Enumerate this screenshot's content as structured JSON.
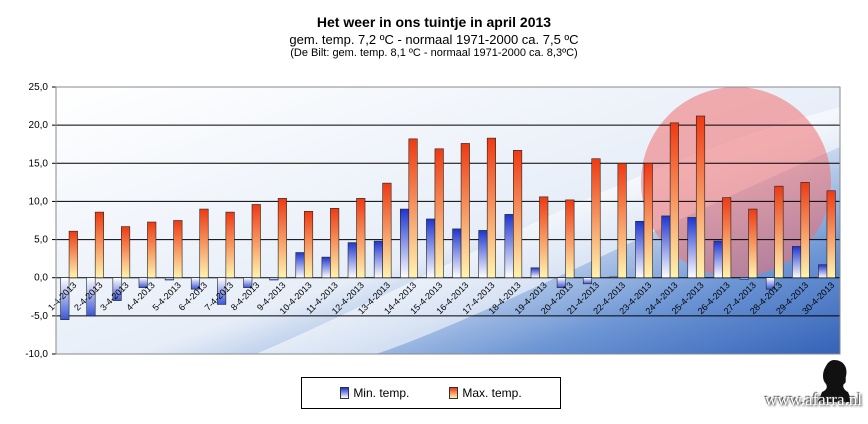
{
  "chart_data": {
    "type": "bar",
    "title": "Het weer in ons tuintje in april 2013",
    "subtitle": "gem. temp. 7,2 ºC - normaal 1971-2000 ca. 7,5 ºC",
    "subtitle2": "(De Bilt: gem. temp. 8,1 ºC - normaal 1971-2000 ca. 8,3ºC)",
    "xlabel": "",
    "ylabel": "",
    "ylim": [
      -10,
      25
    ],
    "yticks": [
      "-10,0",
      "-5,0",
      "0,0",
      "5,0",
      "10,0",
      "15,0",
      "20,0",
      "25,0"
    ],
    "grid": true,
    "legend_position": "bottom",
    "categories": [
      "1-4-2013",
      "2-4-2013",
      "3-4-2013",
      "4-4-2013",
      "5-4-2013",
      "6-4-2013",
      "7-4-2013",
      "8-4-2013",
      "9-4-2013",
      "10-4-2013",
      "11-4-2013",
      "12-4-2013",
      "13-4-2013",
      "14-4-2013",
      "15-4-2013",
      "16-4-2013",
      "17-4-2013",
      "18-4-2013",
      "19-4-2013",
      "20-4-2013",
      "21-4-2013",
      "22-4-2013",
      "23-4-2013",
      "24-4-2013",
      "25-4-2013",
      "26-4-2013",
      "27-4-2013",
      "28-4-2013",
      "29-4-2013",
      "30-4-2013"
    ],
    "series": [
      {
        "name": "Min. temp.",
        "color": "#3a4fd6",
        "values": [
          -5.5,
          -5.0,
          -3.0,
          -1.3,
          -0.3,
          -1.5,
          -3.5,
          -1.3,
          -0.3,
          3.3,
          2.7,
          4.6,
          4.8,
          9.0,
          7.7,
          6.4,
          6.2,
          8.3,
          1.3,
          -1.3,
          -0.8,
          0.1,
          7.4,
          8.1,
          7.9,
          4.8,
          -0.2,
          -1.5,
          4.1,
          1.7
        ]
      },
      {
        "name": "Max. temp.",
        "color": "#e8401a",
        "values": [
          6.1,
          8.6,
          6.7,
          7.3,
          7.5,
          9.0,
          8.6,
          9.6,
          10.4,
          8.7,
          9.1,
          10.4,
          12.4,
          18.2,
          16.9,
          17.6,
          18.3,
          16.7,
          10.6,
          10.2,
          15.6,
          15.0,
          15.0,
          20.3,
          21.2,
          10.5,
          9.0,
          12.0,
          12.5,
          11.4
        ]
      }
    ]
  },
  "legend": {
    "min_label": "Min. temp.",
    "max_label": "Max. temp."
  },
  "watermark": "www.afarra.nl"
}
